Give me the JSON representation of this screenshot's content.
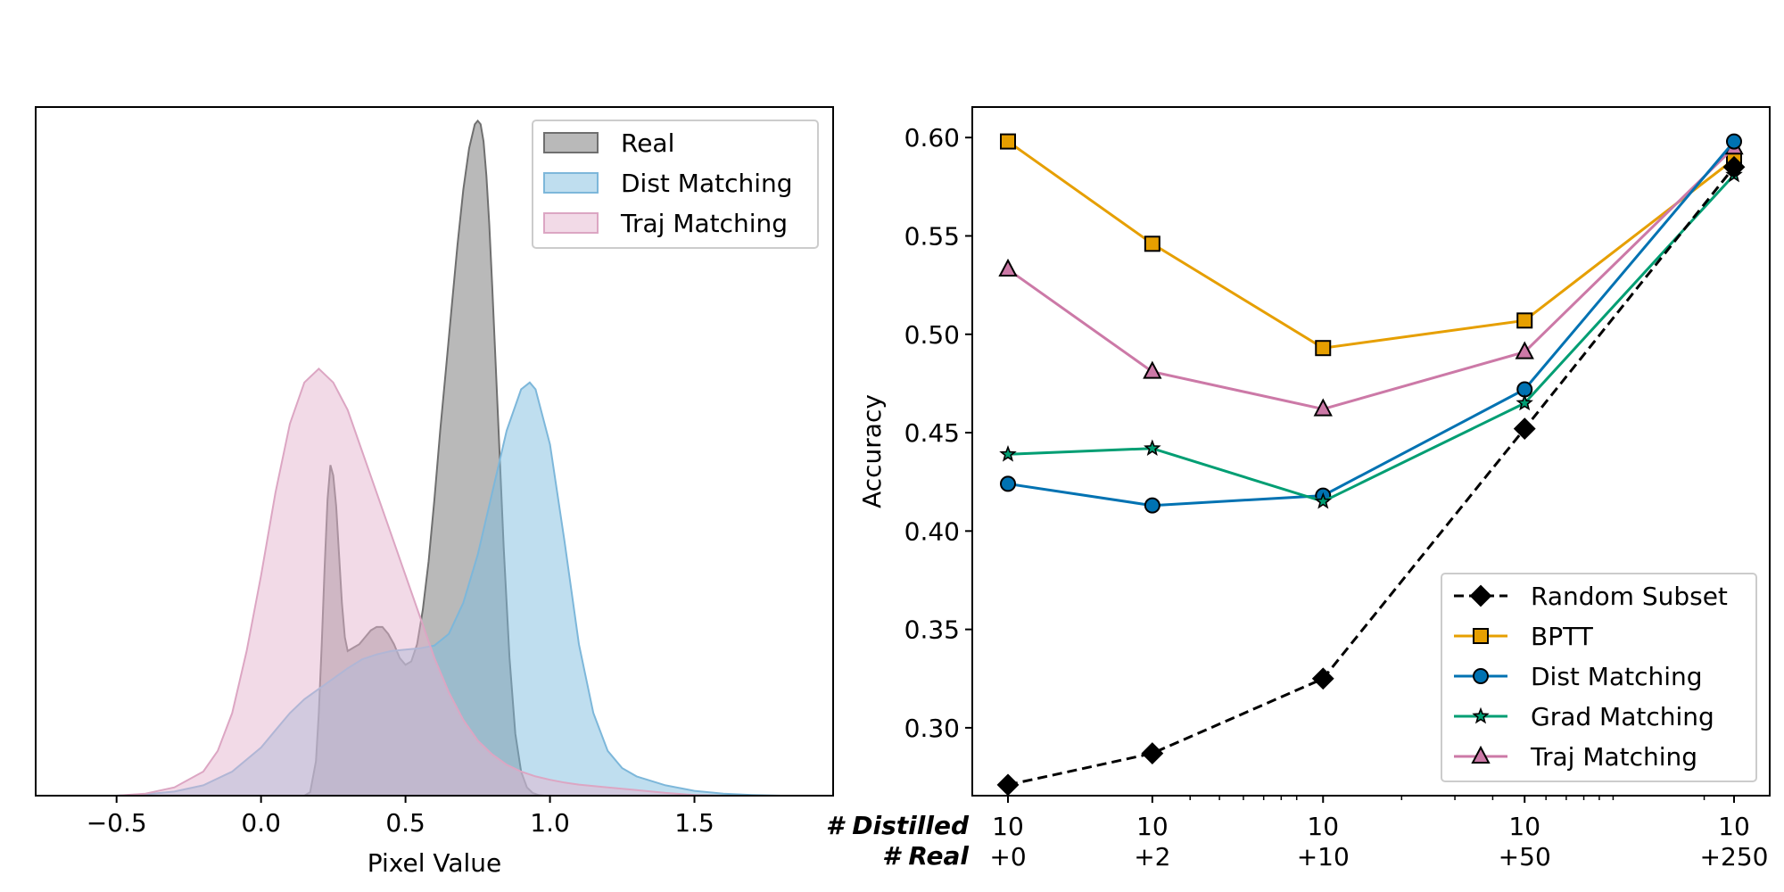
{
  "chart_data": [
    {
      "type": "area",
      "title": "",
      "xlabel": "Pixel Value",
      "ylabel": "",
      "xlim": [
        -0.78,
        1.98
      ],
      "ylim": [
        0,
        1.0
      ],
      "xticks": [
        -0.5,
        0.0,
        0.5,
        1.0,
        1.5
      ],
      "xtick_labels": [
        "−0.5",
        "0.0",
        "0.5",
        "1.0",
        "1.5"
      ],
      "legend": {
        "placement": "top-right",
        "entries": [
          "Real",
          "Dist Matching",
          "Traj Matching"
        ]
      },
      "series": [
        {
          "name": "Real",
          "fill": "#808080",
          "stroke": "#6f6f6f",
          "x": [
            0.15,
            0.17,
            0.19,
            0.2,
            0.21,
            0.22,
            0.23,
            0.24,
            0.25,
            0.26,
            0.27,
            0.28,
            0.29,
            0.3,
            0.32,
            0.34,
            0.36,
            0.38,
            0.4,
            0.42,
            0.44,
            0.46,
            0.48,
            0.5,
            0.52,
            0.54,
            0.56,
            0.58,
            0.6,
            0.62,
            0.64,
            0.66,
            0.68,
            0.7,
            0.72,
            0.74,
            0.75,
            0.76,
            0.77,
            0.78,
            0.79,
            0.8,
            0.82,
            0.84,
            0.86,
            0.88,
            0.9,
            0.92,
            0.94,
            0.96,
            0.98,
            1.0
          ],
          "y": [
            0.0,
            0.005,
            0.05,
            0.12,
            0.22,
            0.33,
            0.43,
            0.48,
            0.465,
            0.42,
            0.35,
            0.28,
            0.23,
            0.21,
            0.215,
            0.22,
            0.23,
            0.24,
            0.245,
            0.245,
            0.235,
            0.22,
            0.2,
            0.19,
            0.195,
            0.22,
            0.27,
            0.34,
            0.43,
            0.53,
            0.62,
            0.71,
            0.8,
            0.88,
            0.94,
            0.975,
            0.98,
            0.975,
            0.95,
            0.9,
            0.83,
            0.74,
            0.55,
            0.36,
            0.2,
            0.09,
            0.035,
            0.012,
            0.004,
            0.001,
            0.0,
            0.0
          ]
        },
        {
          "name": "Dist Matching",
          "fill": "#7fbde0",
          "stroke": "#7db7da",
          "x": [
            -0.5,
            -0.4,
            -0.3,
            -0.2,
            -0.1,
            0.0,
            0.05,
            0.1,
            0.15,
            0.2,
            0.25,
            0.3,
            0.35,
            0.4,
            0.45,
            0.5,
            0.55,
            0.6,
            0.65,
            0.7,
            0.75,
            0.8,
            0.85,
            0.9,
            0.93,
            0.95,
            1.0,
            1.05,
            1.1,
            1.15,
            1.2,
            1.25,
            1.3,
            1.4,
            1.5,
            1.6,
            1.7,
            1.8
          ],
          "y": [
            0.0,
            0.002,
            0.006,
            0.015,
            0.035,
            0.07,
            0.095,
            0.12,
            0.14,
            0.155,
            0.17,
            0.185,
            0.198,
            0.205,
            0.21,
            0.212,
            0.214,
            0.218,
            0.235,
            0.28,
            0.35,
            0.44,
            0.53,
            0.59,
            0.6,
            0.59,
            0.51,
            0.37,
            0.22,
            0.12,
            0.065,
            0.04,
            0.028,
            0.015,
            0.007,
            0.003,
            0.001,
            0.0
          ]
        },
        {
          "name": "Traj Matching",
          "fill": "#e6b5cf",
          "stroke": "#dca6c3",
          "x": [
            -0.5,
            -0.4,
            -0.3,
            -0.2,
            -0.15,
            -0.1,
            -0.05,
            0.0,
            0.05,
            0.1,
            0.15,
            0.2,
            0.25,
            0.3,
            0.35,
            0.4,
            0.45,
            0.5,
            0.55,
            0.6,
            0.65,
            0.7,
            0.75,
            0.8,
            0.85,
            0.9,
            0.95,
            1.0,
            1.05,
            1.1,
            1.2,
            1.3,
            1.4,
            1.5,
            1.6
          ],
          "y": [
            0.0,
            0.003,
            0.012,
            0.035,
            0.065,
            0.12,
            0.21,
            0.32,
            0.44,
            0.54,
            0.6,
            0.62,
            0.6,
            0.56,
            0.5,
            0.44,
            0.38,
            0.32,
            0.26,
            0.2,
            0.15,
            0.11,
            0.08,
            0.06,
            0.045,
            0.035,
            0.028,
            0.023,
            0.019,
            0.016,
            0.012,
            0.008,
            0.004,
            0.001,
            0.0
          ]
        }
      ]
    },
    {
      "type": "line",
      "title": "",
      "xlabel": "",
      "ylabel": "Accuracy",
      "ylim": [
        0.2655,
        0.6155
      ],
      "yticks": [
        0.3,
        0.35,
        0.4,
        0.45,
        0.5,
        0.55,
        0.6
      ],
      "ytick_labels": [
        "0.30",
        "0.35",
        "0.40",
        "0.45",
        "0.50",
        "0.55",
        "0.60"
      ],
      "x_scale": "log",
      "x_index": [
        0,
        2,
        10,
        50,
        250
      ],
      "x_row1_title": "# Distilled",
      "x_row2_title": "# Real",
      "x_row1_labels": [
        "10",
        "10",
        "10",
        "10",
        "10"
      ],
      "x_row2_labels": [
        "+0",
        "+2",
        "+10",
        "+50",
        "+250"
      ],
      "legend": {
        "placement": "bottom-right",
        "entries": [
          "Random Subset",
          "BPTT",
          "Dist Matching",
          "Grad Matching",
          "Traj Matching"
        ]
      },
      "series": [
        {
          "name": "Random Subset",
          "color": "#000000",
          "marker": "diamond",
          "dashed": true,
          "values": [
            0.271,
            0.287,
            0.325,
            0.452,
            0.585
          ]
        },
        {
          "name": "BPTT",
          "color": "#e69f00",
          "marker": "square",
          "dashed": false,
          "values": [
            0.598,
            0.546,
            0.493,
            0.507,
            0.589
          ]
        },
        {
          "name": "Dist Matching",
          "color": "#0072b2",
          "marker": "circle",
          "dashed": false,
          "values": [
            0.424,
            0.413,
            0.418,
            0.472,
            0.598
          ]
        },
        {
          "name": "Grad Matching",
          "color": "#009e73",
          "marker": "star",
          "dashed": false,
          "values": [
            0.439,
            0.442,
            0.415,
            0.465,
            0.581
          ]
        },
        {
          "name": "Traj Matching",
          "color": "#cc79a7",
          "marker": "triangle",
          "dashed": false,
          "values": [
            0.533,
            0.481,
            0.462,
            0.491,
            0.595
          ]
        }
      ]
    }
  ]
}
